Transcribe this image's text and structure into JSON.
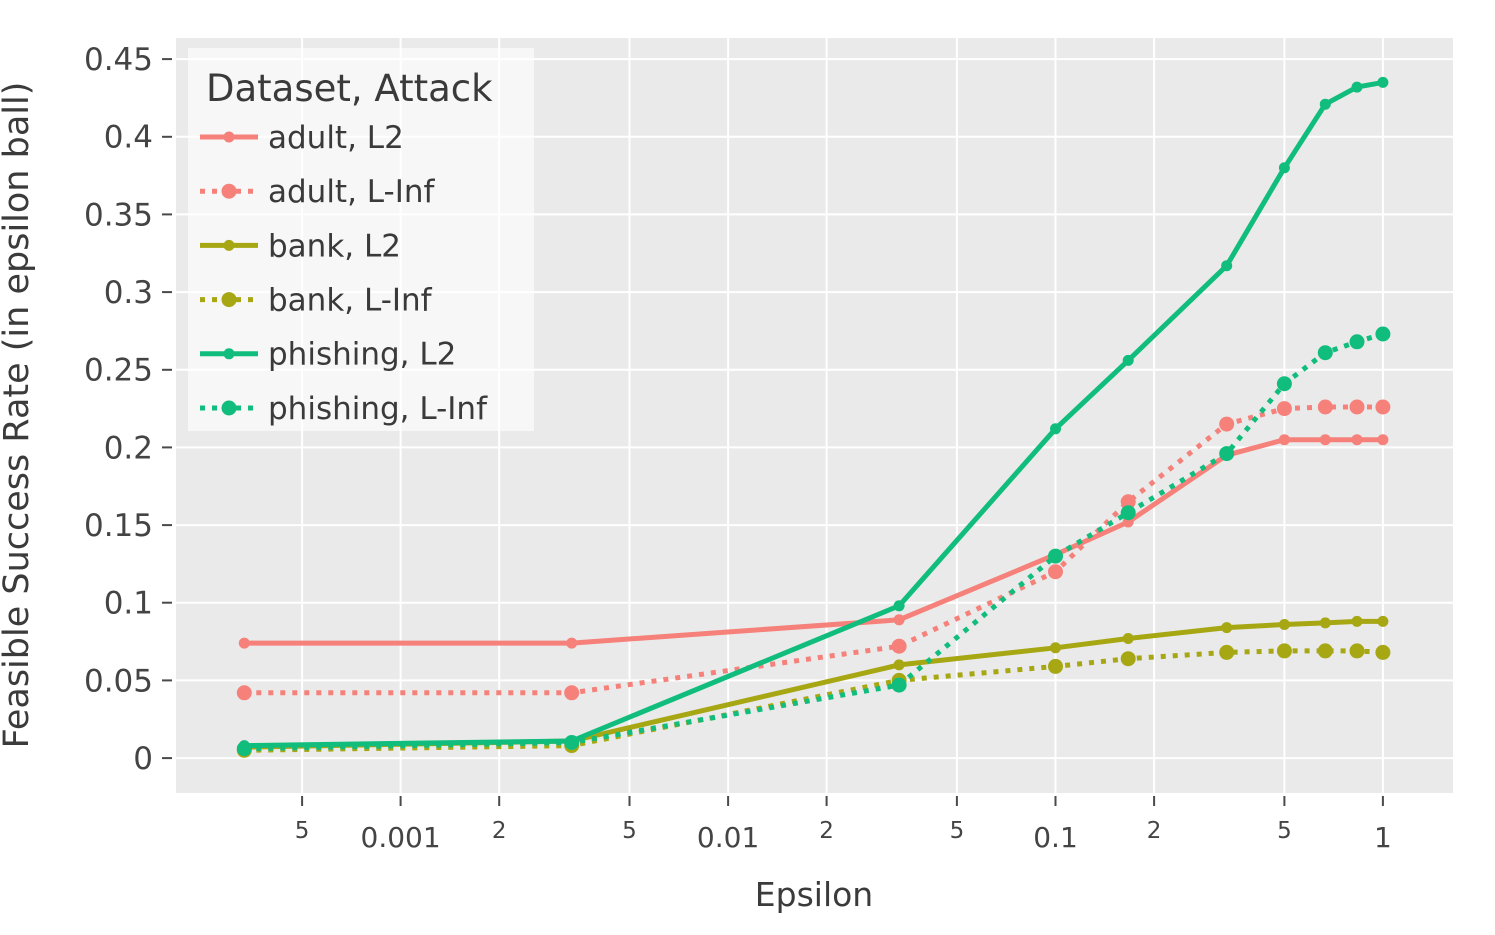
{
  "figure": {
    "background": "#ffffff",
    "plot_background": "#EAEAEA",
    "grid_color": "#ffffff",
    "tick_mark_color": "#4a4a4a",
    "tick_label_color": "#444444",
    "axis_title_color": "#3b3b3b",
    "legend_background": "rgba(255,255,255,0.6)",
    "legend_text_color": "#3a3a3a"
  },
  "chart_data": {
    "type": "line",
    "title": "",
    "xlabel": "Epsilon",
    "ylabel": "Feasible Success Rate (in epsilon ball)",
    "x_scale": "log",
    "x_log_range": [
      -3.686,
      0.214
    ],
    "y_range": [
      -0.0225,
      0.4636
    ],
    "grid": true,
    "legend_position": "top-left",
    "legend_title": "Dataset, Attack",
    "x": [
      0.000333,
      0.00333,
      0.0333,
      0.1,
      0.1667,
      0.3333,
      0.5,
      0.6667,
      0.8333,
      1.0
    ],
    "series": [
      {
        "name": "adult, L2",
        "dataset": "adult",
        "attack": "L2",
        "color": "#F5817A",
        "dash": "solid",
        "marker_r": 5.5,
        "values": [
          0.074,
          0.074,
          0.089,
          0.131,
          0.152,
          0.195,
          0.205,
          0.205,
          0.205,
          0.205
        ]
      },
      {
        "name": "adult, L-Inf",
        "dataset": "adult",
        "attack": "L-Inf",
        "color": "#F5817A",
        "dash": "dot",
        "marker_r": 7.5,
        "values": [
          0.042,
          0.042,
          0.072,
          0.12,
          0.165,
          0.215,
          0.225,
          0.226,
          0.226,
          0.226
        ]
      },
      {
        "name": "bank, L2",
        "dataset": "bank",
        "attack": "L2",
        "color": "#A6A713",
        "dash": "solid",
        "marker_r": 5.5,
        "values": [
          0.007,
          0.011,
          0.06,
          0.071,
          0.077,
          0.084,
          0.086,
          0.087,
          0.088,
          0.088
        ]
      },
      {
        "name": "bank, L-Inf",
        "dataset": "bank",
        "attack": "L-Inf",
        "color": "#A6A713",
        "dash": "dot",
        "marker_r": 7.5,
        "values": [
          0.005,
          0.008,
          0.05,
          0.059,
          0.064,
          0.068,
          0.069,
          0.069,
          0.069,
          0.068
        ]
      },
      {
        "name": "phishing, L2",
        "dataset": "phishing",
        "attack": "L2",
        "color": "#10BD7D",
        "dash": "solid",
        "marker_r": 5.5,
        "values": [
          0.008,
          0.011,
          0.098,
          0.212,
          0.256,
          0.317,
          0.38,
          0.421,
          0.432,
          0.435
        ]
      },
      {
        "name": "phishing, L-Inf",
        "dataset": "phishing",
        "attack": "L-Inf",
        "color": "#10BD7D",
        "dash": "dot",
        "marker_r": 7.5,
        "values": [
          0.006,
          0.01,
          0.047,
          0.13,
          0.158,
          0.196,
          0.241,
          0.261,
          0.268,
          0.273
        ]
      }
    ],
    "x_ticks": [
      {
        "value": 0.0005,
        "label": "5",
        "minor": true
      },
      {
        "value": 0.001,
        "label": "0.001",
        "minor": false
      },
      {
        "value": 0.002,
        "label": "2",
        "minor": true
      },
      {
        "value": 0.005,
        "label": "5",
        "minor": true
      },
      {
        "value": 0.01,
        "label": "0.01",
        "minor": false
      },
      {
        "value": 0.02,
        "label": "2",
        "minor": true
      },
      {
        "value": 0.05,
        "label": "5",
        "minor": true
      },
      {
        "value": 0.1,
        "label": "0.1",
        "minor": false
      },
      {
        "value": 0.2,
        "label": "2",
        "minor": true
      },
      {
        "value": 0.5,
        "label": "5",
        "minor": true
      },
      {
        "value": 1,
        "label": "1",
        "minor": false
      }
    ],
    "y_ticks": [
      {
        "value": 0,
        "label": "0"
      },
      {
        "value": 0.05,
        "label": "0.05"
      },
      {
        "value": 0.1,
        "label": "0.1"
      },
      {
        "value": 0.15,
        "label": "0.15"
      },
      {
        "value": 0.2,
        "label": "0.2"
      },
      {
        "value": 0.25,
        "label": "0.25"
      },
      {
        "value": 0.3,
        "label": "0.3"
      },
      {
        "value": 0.35,
        "label": "0.35"
      },
      {
        "value": 0.4,
        "label": "0.4"
      },
      {
        "value": 0.45,
        "label": "0.45"
      }
    ]
  }
}
